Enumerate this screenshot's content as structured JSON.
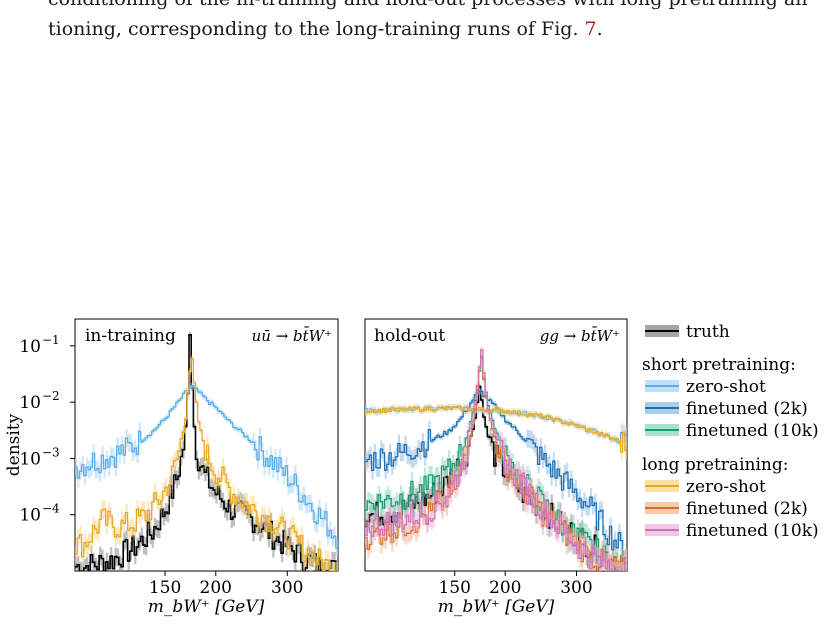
{
  "caption": {
    "line_cut": "conditioning of the in-training and hold-out processes with long pretraining and fine-",
    "line": "tioning, corresponding to the long-training runs of Fig. ",
    "fig_ref": "7",
    "end": "."
  },
  "chart_data": [
    {
      "type": "line",
      "panel": "in-training",
      "process": "uū → bt̄W⁺",
      "xlabel": "m_bW⁺ [GeV]",
      "ylabel": "density",
      "xscale": "log",
      "yscale": "log",
      "xlim": [
        90,
        400
      ],
      "ylim": [
        1e-05,
        0.3
      ],
      "xticks": [
        150,
        200,
        300
      ],
      "yticks": [
        "10^-4",
        "10^-3",
        "10^-2",
        "10^-1"
      ],
      "series": [
        {
          "name": "truth",
          "color": "#000000",
          "band_color": "#888888",
          "x": [
            95,
            110,
            125,
            140,
            150,
            160,
            166,
            170,
            173,
            176,
            180,
            188,
            200,
            220,
            250,
            280,
            320,
            360,
            400
          ],
          "y": [
            1.2e-05,
            1.5e-05,
            2.5e-05,
            5e-05,
            0.00012,
            0.0004,
            0.0013,
            0.006,
            0.2,
            0.006,
            0.0012,
            0.0005,
            0.00025,
            0.00012,
            8e-05,
            4e-05,
            2e-05,
            1.2e-05,
            1e-05
          ]
        },
        {
          "name": "zero-shot (short pretraining)",
          "color": "#5aaee8",
          "band_color": "#a9d6f5",
          "x": [
            90,
            100,
            110,
            120,
            130,
            140,
            150,
            160,
            170,
            175,
            180,
            190,
            200,
            220,
            250,
            280,
            300,
            330,
            360,
            400
          ],
          "y": [
            0.0007,
            0.0009,
            0.0011,
            0.0014,
            0.002,
            0.003,
            0.005,
            0.009,
            0.016,
            0.019,
            0.016,
            0.011,
            0.008,
            0.004,
            0.0018,
            0.0008,
            0.0005,
            0.00022,
            0.0001,
            4e-05
          ]
        },
        {
          "name": "zero-shot (long pretraining)",
          "color": "#e8a824",
          "band_color": "#f5d68a",
          "x": [
            95,
            105,
            115,
            125,
            135,
            145,
            155,
            162,
            168,
            172,
            175,
            178,
            182,
            190,
            200,
            220,
            250,
            280,
            320,
            360,
            400
          ],
          "y": [
            3e-05,
            8e-05,
            6e-05,
            7e-05,
            0.0001,
            0.00018,
            0.0004,
            0.0012,
            0.004,
            0.03,
            0.055,
            0.015,
            0.004,
            0.0012,
            0.0006,
            0.00025,
            0.00012,
            7e-05,
            3e-05,
            1.5e-05,
            1e-05
          ]
        }
      ]
    },
    {
      "type": "line",
      "panel": "hold-out",
      "process": "gg → bt̄W⁺",
      "xlabel": "m_bW⁺ [GeV]",
      "ylabel": "",
      "xscale": "log",
      "yscale": "log",
      "xlim": [
        90,
        400
      ],
      "ylim": [
        1e-05,
        0.3
      ],
      "xticks": [
        150,
        200,
        300
      ],
      "series": [
        {
          "name": "truth",
          "color": "#000000",
          "band_color": "#888888",
          "x": [
            95,
            110,
            125,
            140,
            150,
            160,
            166,
            170,
            173,
            176,
            180,
            188,
            200,
            220,
            250,
            280,
            320,
            360,
            400
          ],
          "y": [
            0.0001,
            0.00012,
            0.00018,
            0.0003,
            0.0006,
            0.0012,
            0.003,
            0.008,
            0.02,
            0.008,
            0.003,
            0.0012,
            0.0006,
            0.00025,
            0.00012,
            6e-05,
            3e-05,
            1.8e-05,
            1.2e-05
          ]
        },
        {
          "name": "zero-shot (short pretraining)",
          "color": "#5aaee8",
          "band_color": "#a9d6f5",
          "x": [
            90,
            120,
            150,
            170,
            200,
            250,
            300,
            350,
            400
          ],
          "y": [
            0.007,
            0.0075,
            0.0078,
            0.0075,
            0.007,
            0.0055,
            0.0038,
            0.0026,
            0.0018
          ]
        },
        {
          "name": "finetuned (2k) (short pretraining)",
          "color": "#1f6fb4",
          "band_color": "#8fbde0",
          "x": [
            90,
            110,
            130,
            145,
            155,
            165,
            170,
            175,
            180,
            190,
            200,
            220,
            250,
            280,
            320,
            360,
            400
          ],
          "y": [
            0.0009,
            0.0012,
            0.002,
            0.003,
            0.005,
            0.01,
            0.014,
            0.015,
            0.012,
            0.008,
            0.005,
            0.0025,
            0.0009,
            0.0004,
            0.00015,
            5e-05,
            2e-05
          ]
        },
        {
          "name": "finetuned (10k) (short pretraining)",
          "color": "#1a9a73",
          "band_color": "#8fd6bf",
          "x": [
            90,
            110,
            130,
            145,
            155,
            162,
            168,
            172,
            175,
            178,
            182,
            190,
            200,
            220,
            250,
            280,
            320,
            360,
            400
          ],
          "y": [
            0.00015,
            0.0002,
            0.0003,
            0.0006,
            0.0012,
            0.003,
            0.008,
            0.03,
            0.06,
            0.02,
            0.008,
            0.003,
            0.0012,
            0.0004,
            0.00015,
            6e-05,
            3e-05,
            1.5e-05,
            1e-05
          ]
        },
        {
          "name": "zero-shot (long pretraining)",
          "color": "#e8a824",
          "band_color": "#f5d68a",
          "x": [
            90,
            120,
            150,
            170,
            200,
            250,
            300,
            350,
            400
          ],
          "y": [
            0.007,
            0.0075,
            0.0078,
            0.0075,
            0.007,
            0.0055,
            0.0038,
            0.0026,
            0.0018
          ]
        },
        {
          "name": "finetuned (2k) (long pretraining)",
          "color": "#d96a22",
          "band_color": "#f2b88e",
          "x": [
            90,
            110,
            130,
            145,
            155,
            162,
            168,
            172,
            175,
            178,
            182,
            190,
            200,
            220,
            250,
            280,
            320,
            360,
            400
          ],
          "y": [
            4e-05,
            6e-05,
            0.0001,
            0.0002,
            0.0005,
            0.0015,
            0.006,
            0.03,
            0.07,
            0.02,
            0.006,
            0.002,
            0.0008,
            0.0003,
            0.0001,
            5e-05,
            2e-05,
            1.2e-05,
            1e-05
          ]
        },
        {
          "name": "finetuned (10k) (long pretraining)",
          "color": "#d070b8",
          "band_color": "#eab5df",
          "x": [
            90,
            110,
            130,
            145,
            155,
            162,
            168,
            172,
            175,
            178,
            182,
            190,
            200,
            220,
            250,
            280,
            320,
            360,
            400
          ],
          "y": [
            6e-05,
            8e-05,
            0.00012,
            0.00025,
            0.0006,
            0.0018,
            0.007,
            0.035,
            0.09,
            0.025,
            0.007,
            0.0022,
            0.0009,
            0.00035,
            0.00012,
            5e-05,
            2e-05,
            1.2e-05,
            1e-05
          ]
        }
      ]
    }
  ],
  "legend": {
    "truth_label": "truth",
    "short_header": "short pretraining:",
    "long_header": "long pretraining:",
    "short_items": [
      {
        "label": "zero-shot",
        "color": "#5aaee8",
        "band_color": "#a9d6f5"
      },
      {
        "label": "finetuned (2k)",
        "color": "#1f6fb4",
        "band_color": "#8fbde0"
      },
      {
        "label": "finetuned (10k)",
        "color": "#1a9a73",
        "band_color": "#8fd6bf"
      }
    ],
    "long_items": [
      {
        "label": "zero-shot",
        "color": "#e8a824",
        "band_color": "#f5d68a"
      },
      {
        "label": "finetuned (2k)",
        "color": "#d96a22",
        "band_color": "#f2b88e"
      },
      {
        "label": "finetuned (10k)",
        "color": "#d070b8",
        "band_color": "#eab5df"
      }
    ],
    "truth_color": "#000000",
    "truth_band_color": "#888888"
  },
  "tick_text": {
    "x": [
      "150",
      "200",
      "300"
    ],
    "y_base": "10",
    "y_exps": [
      "−4",
      "−3",
      "−2",
      "−1"
    ]
  }
}
